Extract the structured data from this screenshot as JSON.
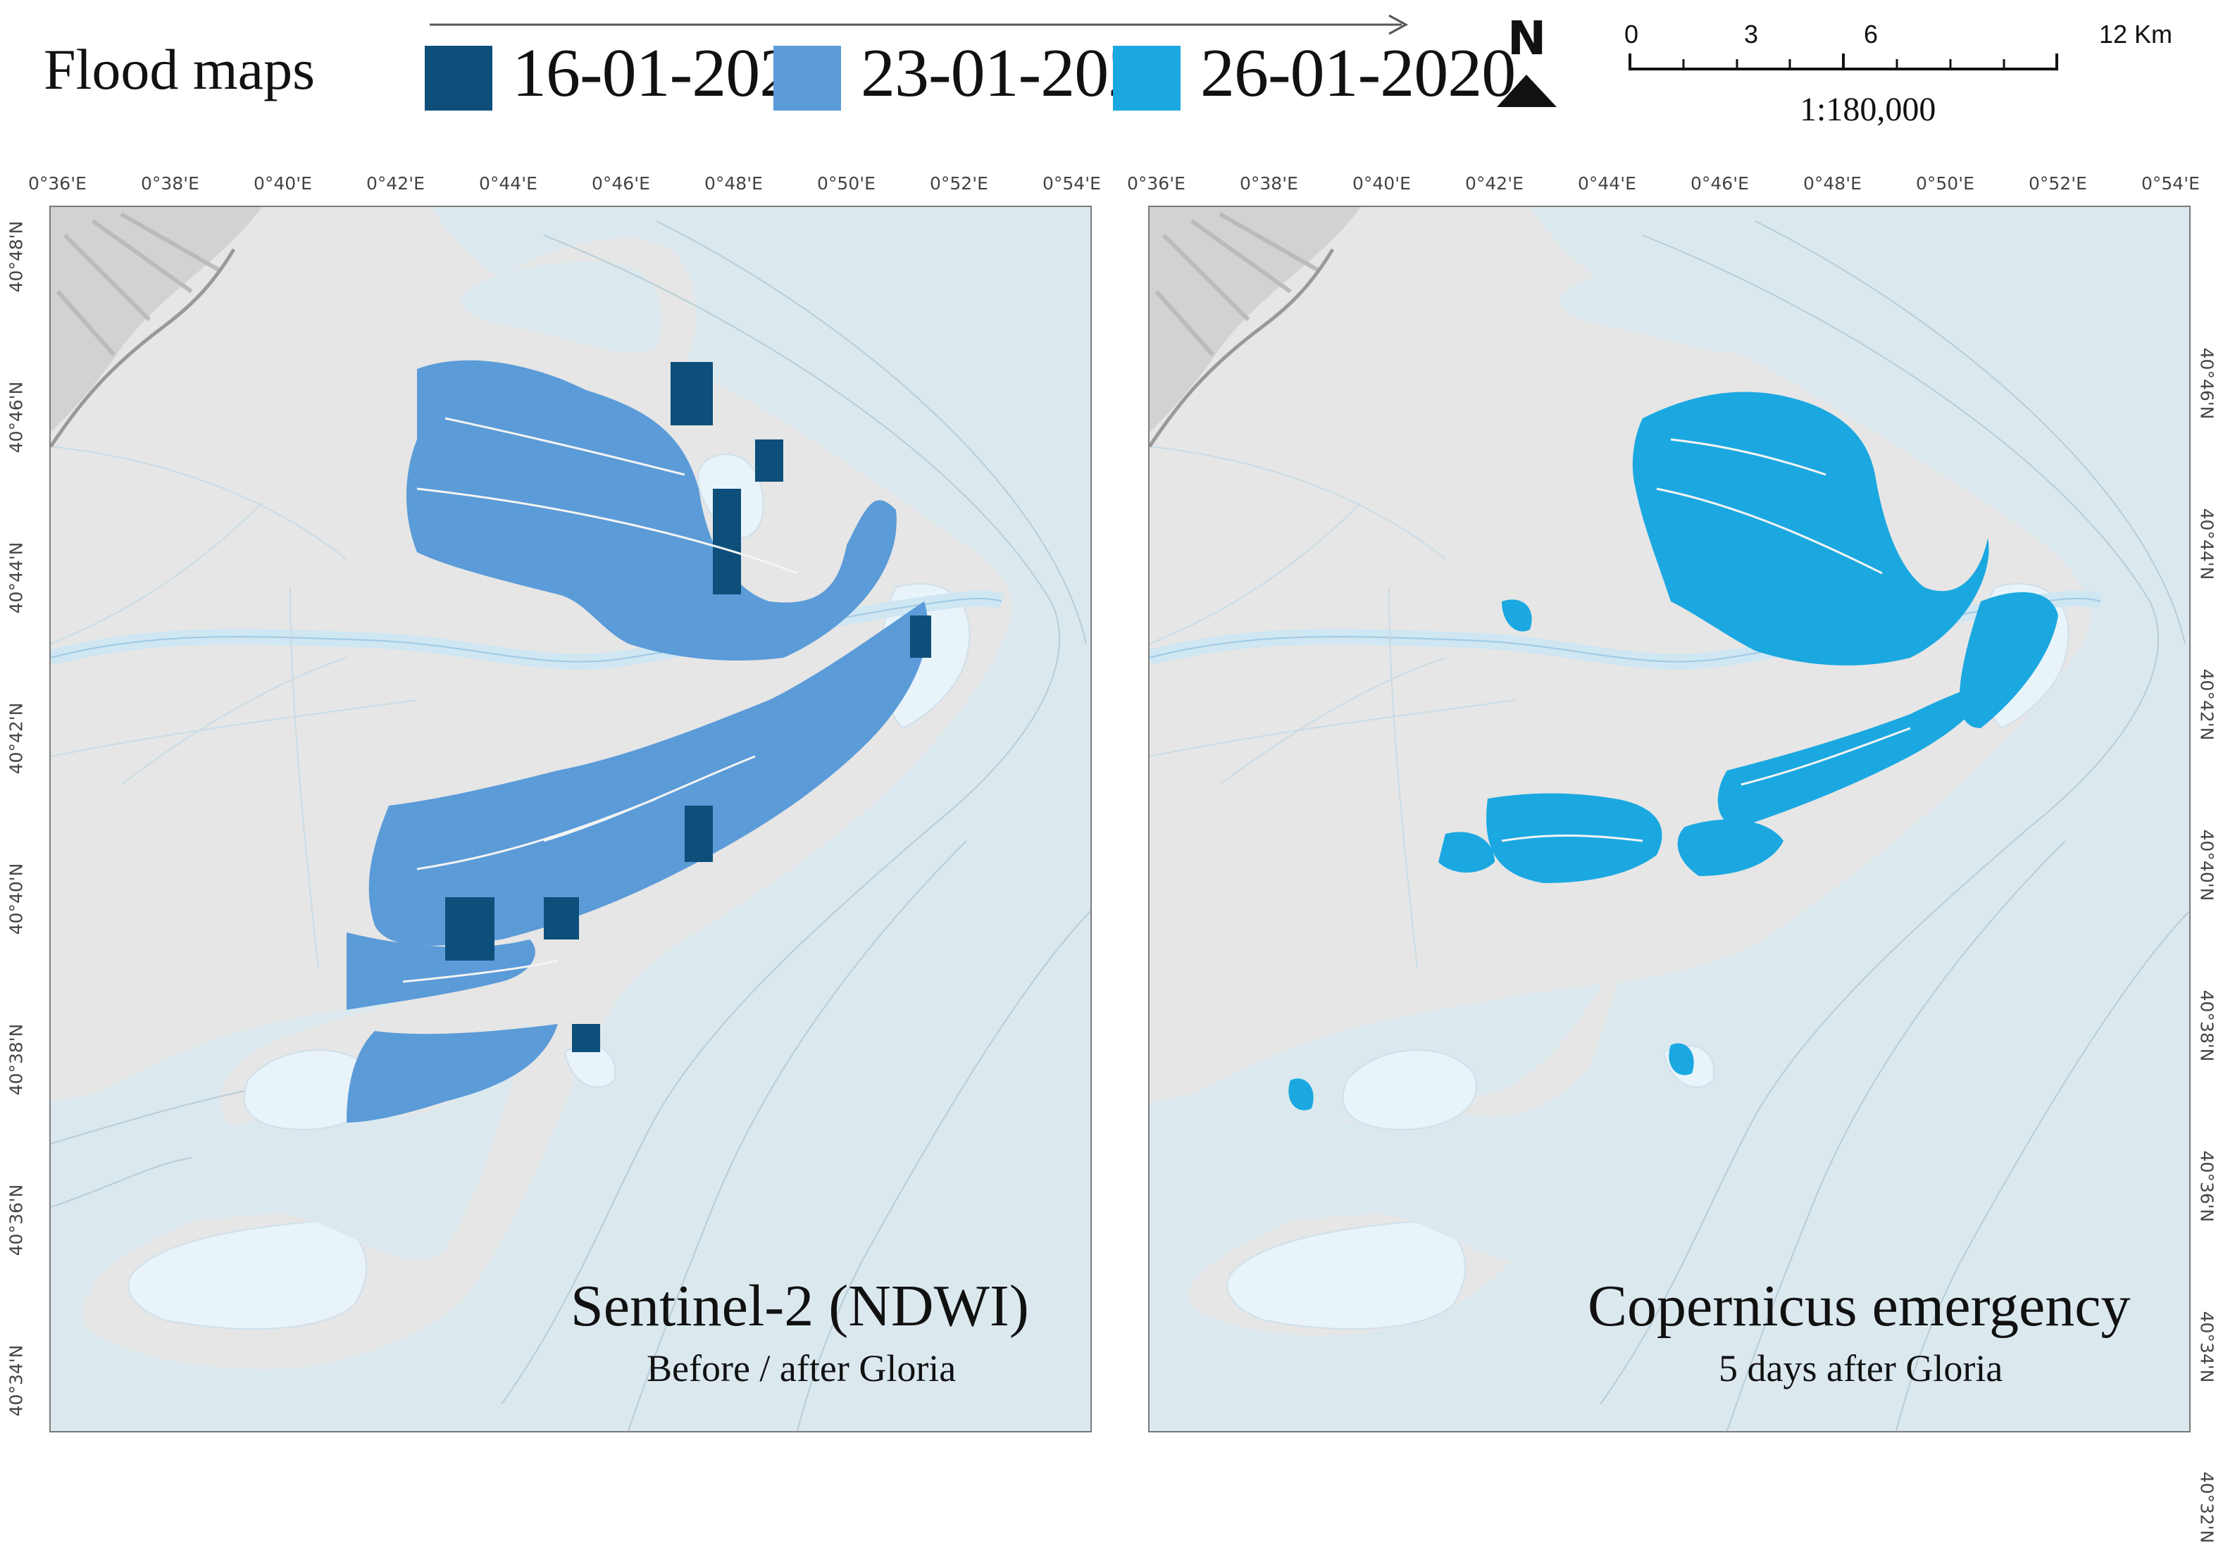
{
  "legend": {
    "title": "Flood maps",
    "items": [
      {
        "label": "16-01-2020",
        "color": "#0d4f7a"
      },
      {
        "label": "23-01-2020",
        "color": "#5b9bd8"
      },
      {
        "label": "26-01-2020",
        "color": "#1ba8e0"
      }
    ]
  },
  "north_arrow": {
    "label": "N"
  },
  "scalebar": {
    "ticks": [
      "0",
      "3",
      "6",
      "12 Km"
    ],
    "ratio": "1:180,000"
  },
  "graticule": {
    "longitudes": [
      "0°36'E",
      "0°38'E",
      "0°40'E",
      "0°42'E",
      "0°44'E",
      "0°46'E",
      "0°48'E",
      "0°50'E",
      "0°52'E",
      "0°54'E"
    ],
    "latitudes_left": [
      "40°48'N",
      "40°46'N",
      "40°44'N",
      "40°42'N",
      "40°40'N",
      "40°38'N",
      "40°36'N",
      "40°34'N"
    ],
    "latitudes_right": [
      "40°46'N",
      "40°44'N",
      "40°42'N",
      "40°40'N",
      "40°38'N",
      "40°36'N",
      "40°34'N",
      "40°32'N"
    ]
  },
  "panels": [
    {
      "title": "Sentinel-2 (NDWI)",
      "subtitle": "Before / after Gloria"
    },
    {
      "title": "Copernicus emergency",
      "subtitle": "5 days after Gloria"
    }
  ],
  "colors": {
    "sea": "#dbe9ef",
    "land": "#e6e6e6",
    "lagoon": "#e8f3fa",
    "river": "#cfe6f3"
  }
}
